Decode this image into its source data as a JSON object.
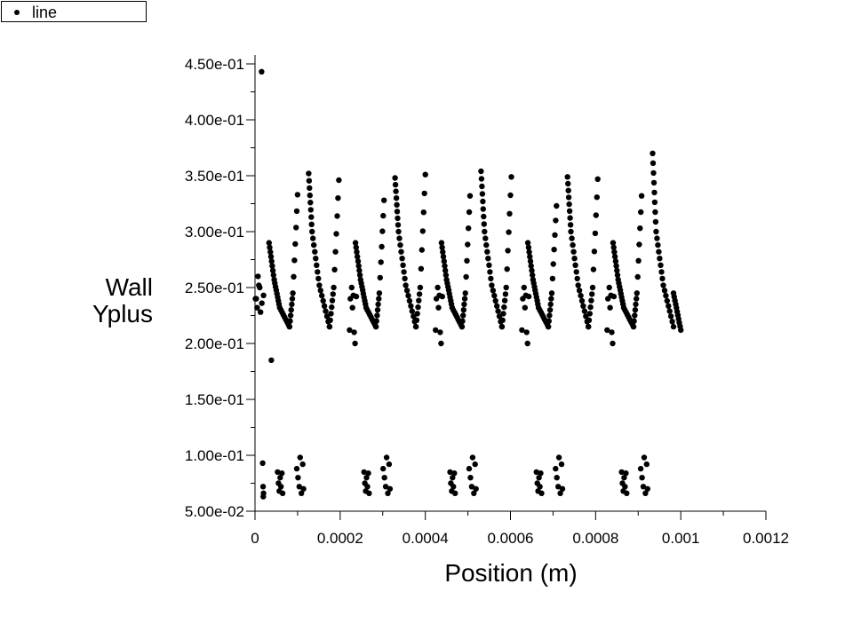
{
  "legend": {
    "label": "line"
  },
  "chart_data": {
    "type": "scatter",
    "title": "",
    "xlabel": "Position (m)",
    "ylabel_lines": [
      "Wall",
      "Yplus"
    ],
    "xlim": [
      0,
      0.0012
    ],
    "ylim": [
      0.05,
      0.45
    ],
    "xticks": [
      0,
      0.0002,
      0.0004,
      0.0006,
      0.0008,
      0.001,
      0.0012
    ],
    "xtick_labels": [
      "0",
      "0.0002",
      "0.0004",
      "0.0006",
      "0.0008",
      "0.001",
      "0.0012"
    ],
    "yticks": [
      0.05,
      0.1,
      0.15,
      0.2,
      0.25,
      0.3,
      0.35,
      0.4,
      0.45
    ],
    "ytick_labels": [
      "5.00e-02",
      "1.00e-01",
      "1.50e-01",
      "2.00e-01",
      "2.50e-01",
      "3.00e-01",
      "3.50e-01",
      "4.00e-01",
      "4.50e-01"
    ],
    "grid": false,
    "legend_position": "top-left",
    "series": [
      {
        "name": "line",
        "color": "#000000",
        "cycle_starts": [
          3.3e-05,
          0.000236,
          0.000438,
          0.000641,
          0.000841
        ],
        "cycle_peak_a": [
          0.333,
          0.328,
          0.332,
          0.323,
          0.332
        ],
        "cycle_peak_b": [
          0.352,
          0.348,
          0.354,
          0.349,
          0.37
        ],
        "cycle_peak_b_rise": [
          0.346,
          0.351,
          0.349,
          0.347,
          null
        ],
        "cycle_start_value": 0.29,
        "cycle_min_value": 0.215,
        "final_point": [
          0.001,
          0.212
        ],
        "mid_scatter_offsets": [
          [
            -1.4e-05,
            0.212
          ],
          [
            -1.2e-05,
            0.24
          ],
          [
            -9e-06,
            0.25
          ],
          [
            -7e-06,
            0.232
          ],
          [
            -5e-06,
            0.243
          ],
          [
            -3e-06,
            0.21
          ],
          [
            -1e-06,
            0.2
          ],
          [
            2e-06,
            0.242
          ]
        ],
        "low_scatter_offsets": [
          [
            3e-05,
            0.085
          ],
          [
            3.2e-05,
            0.075
          ],
          [
            3.4e-05,
            0.068
          ],
          [
            3.6e-05,
            0.08
          ],
          [
            3.8e-05,
            0.072
          ],
          [
            4e-05,
            0.084
          ],
          [
            4.2e-05,
            0.066
          ],
          [
            7.5e-05,
            0.088
          ],
          [
            7.8e-05,
            0.08
          ],
          [
            8.1e-05,
            0.072
          ],
          [
            8.3e-05,
            0.098
          ],
          [
            8.6e-05,
            0.066
          ],
          [
            8.9e-05,
            0.092
          ],
          [
            9.1e-05,
            0.07
          ]
        ],
        "extra_points": [
          [
            1.55e-05,
            0.443
          ],
          [
            3.85e-05,
            0.185
          ],
          [
            1e-06,
            0.24
          ],
          [
            3e-06,
            0.24
          ],
          [
            5e-06,
            0.232
          ],
          [
            7e-06,
            0.26
          ],
          [
            9e-06,
            0.252
          ],
          [
            1.1e-05,
            0.25
          ],
          [
            1.3e-05,
            0.228
          ],
          [
            1.6e-05,
            0.236
          ],
          [
            2e-05,
            0.243
          ],
          [
            1.8e-05,
            0.093
          ],
          [
            1.9e-05,
            0.072
          ],
          [
            2e-05,
            0.066
          ],
          [
            1.95e-05,
            0.063
          ]
        ]
      }
    ]
  }
}
